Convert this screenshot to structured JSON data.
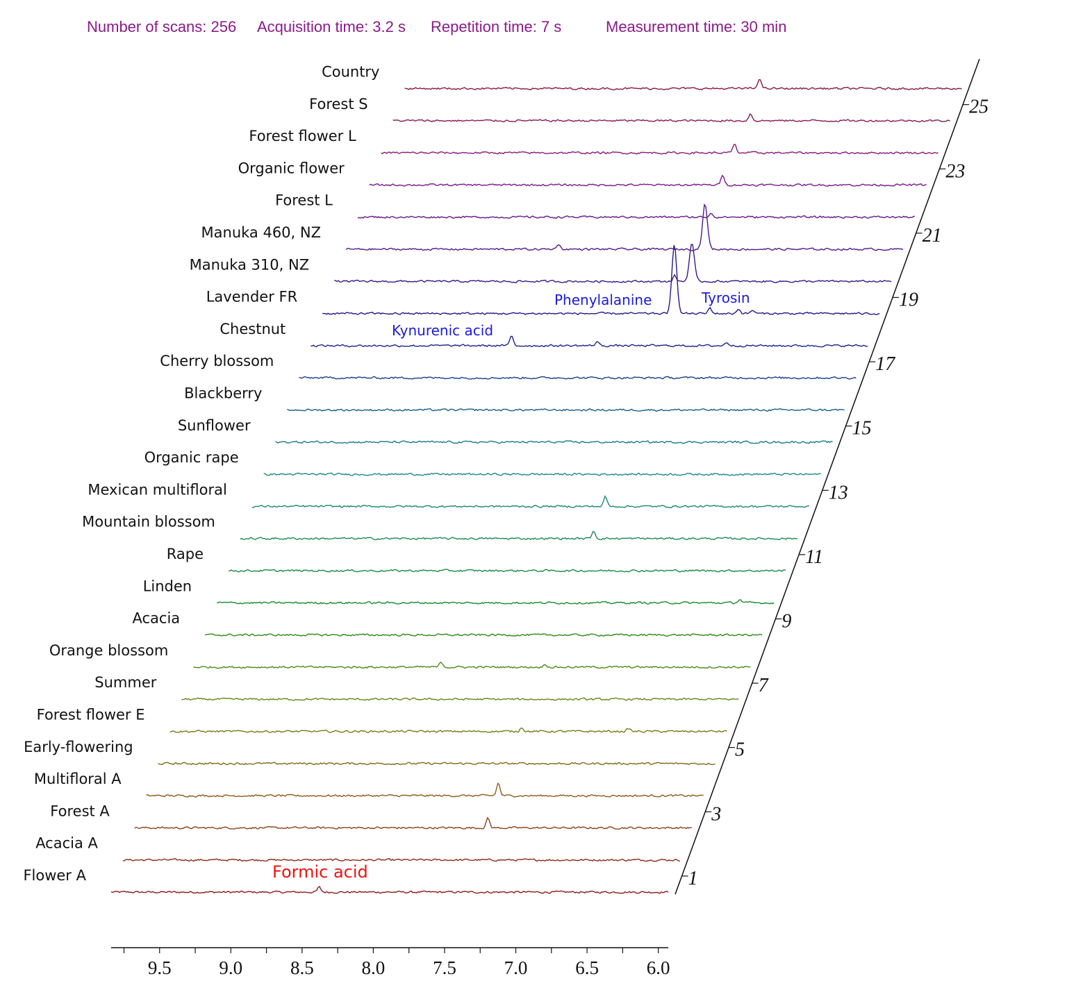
{
  "header": {
    "scans": "Number of scans: 256",
    "acq": "Acquisition time: 3.2 s",
    "rep": "Repetition time:  7 s",
    "meas": "Measurement time: 30 min"
  },
  "chart_data": {
    "type": "line",
    "subtype": "stacked-waterfall NMR spectra",
    "xlabel": "",
    "ylabel": "",
    "xlim": [
      9.84,
      5.93
    ],
    "x_reversed": true,
    "x_ticks": [
      "9.5",
      "9.0",
      "8.5",
      "8.0",
      "7.5",
      "7.0",
      "6.5",
      "6.0"
    ],
    "x_tick_values": [
      9.5,
      9.0,
      8.5,
      8.0,
      7.5,
      7.0,
      6.5,
      6.0
    ],
    "depth_ticks": [
      "1",
      "3",
      "5",
      "7",
      "9",
      "11",
      "13",
      "15",
      "17",
      "19",
      "21",
      "23",
      "25"
    ],
    "grid": false,
    "annotations": {
      "formic": "Formic acid",
      "kynurenic": "Kynurenic acid",
      "phenylalanine": "Phenylalanine",
      "tyrosin": "Tyrosin"
    },
    "series": [
      {
        "name": "Flower A",
        "color": "#8b1a1a",
        "peaks": [
          [
            8.38,
            7
          ]
        ]
      },
      {
        "name": "Acacia A",
        "color": "#8b2a1a",
        "peaks": []
      },
      {
        "name": "Forest A",
        "color": "#8b421a",
        "peaks": [
          [
            7.36,
            14
          ]
        ]
      },
      {
        "name": "Multifloral  A",
        "color": "#8b5a1a",
        "peaks": [
          [
            7.37,
            18
          ]
        ]
      },
      {
        "name": "Early-flowering",
        "color": "#7f6a14",
        "peaks": []
      },
      {
        "name": "Forest flower E",
        "color": "#7a7a16",
        "peaks": [
          [
            7.37,
            6
          ],
          [
            6.62,
            4
          ]
        ]
      },
      {
        "name": "Summer",
        "color": "#6a841a",
        "peaks": []
      },
      {
        "name": "Orange blossom",
        "color": "#4e8a1a",
        "peaks": [
          [
            8.1,
            7
          ],
          [
            7.37,
            4
          ]
        ]
      },
      {
        "name": "Acacia",
        "color": "#2e8a1a",
        "peaks": []
      },
      {
        "name": "Linden",
        "color": "#1a8a2c",
        "peaks": [
          [
            6.17,
            5
          ]
        ]
      },
      {
        "name": "Rape",
        "color": "#1a8a48",
        "peaks": []
      },
      {
        "name": "Mountain blossom",
        "color": "#1a8a5c",
        "peaks": [
          [
            7.36,
            11
          ]
        ]
      },
      {
        "name": "Mexican multifloral",
        "color": "#1a8a72",
        "peaks": [
          [
            7.36,
            14
          ]
        ]
      },
      {
        "name": "Organic rape",
        "color": "#1a8a86",
        "peaks": []
      },
      {
        "name": "Sunflower",
        "color": "#1a7a8a",
        "peaks": []
      },
      {
        "name": "Blackberry",
        "color": "#1a5c8a",
        "peaks": []
      },
      {
        "name": "Cherry blossom",
        "color": "#1a3e8a",
        "peaks": []
      },
      {
        "name": "Chestnut",
        "color": "#1a248a",
        "peaks": [
          [
            8.43,
            14
          ],
          [
            7.83,
            6
          ],
          [
            6.92,
            5
          ]
        ]
      },
      {
        "name": "Lavender FR",
        "color": "#22188a",
        "peaks": [
          [
            7.37,
            100
          ],
          [
            7.12,
            8
          ],
          [
            6.92,
            7
          ],
          [
            6.82,
            5
          ]
        ]
      },
      {
        "name": "Manuka 310, NZ",
        "color": "#3a188a",
        "peaks": [
          [
            7.33,
            55
          ],
          [
            7.45,
            8
          ]
        ]
      },
      {
        "name": "Manuka 460, NZ",
        "color": "#52188a",
        "peaks": [
          [
            7.32,
            65
          ],
          [
            8.35,
            8
          ]
        ]
      },
      {
        "name": "Forest L",
        "color": "#66188a",
        "peaks": [
          [
            7.36,
            6
          ]
        ]
      },
      {
        "name": "Organic flower",
        "color": "#7a188a",
        "peaks": [
          [
            7.36,
            15
          ]
        ]
      },
      {
        "name": "Forest flower L",
        "color": "#8a1878",
        "peaks": [
          [
            7.36,
            12
          ]
        ]
      },
      {
        "name": "Forest S",
        "color": "#8a1858",
        "peaks": [
          [
            7.33,
            10
          ]
        ]
      },
      {
        "name": "Country",
        "color": "#8a183c",
        "peaks": [
          [
            7.35,
            15
          ]
        ]
      }
    ]
  }
}
